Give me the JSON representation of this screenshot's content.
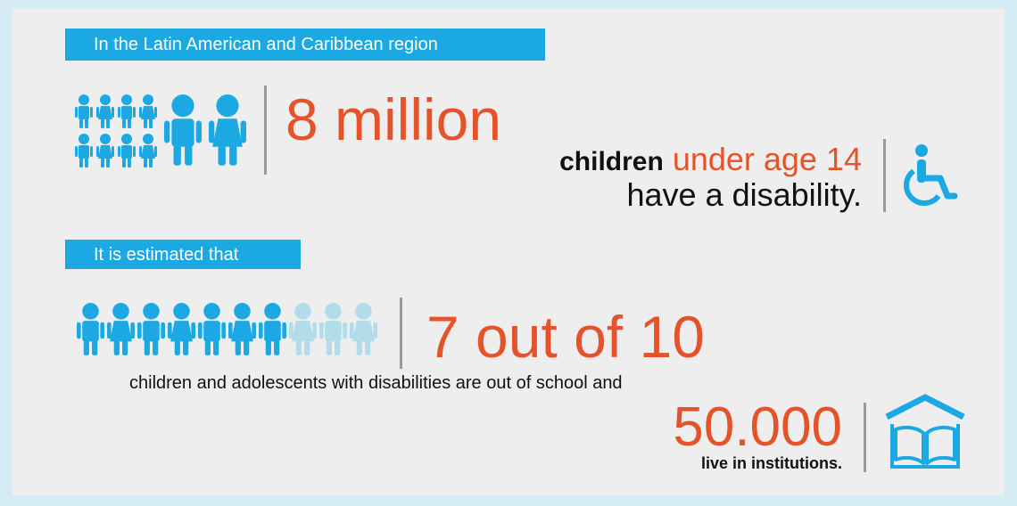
{
  "banners": {
    "region": "In the Latin American and Caribbean region",
    "estimated": "It is estimated that"
  },
  "stat1": {
    "number": "8 million",
    "children_bold": "children",
    "age_text": "under age 14",
    "disability_text": "have a disability."
  },
  "stat2": {
    "number": "7 out of 10",
    "description": "children and adolescents with disabilities are out of school and"
  },
  "stat3": {
    "number": "50.000",
    "description": "live in institutions."
  },
  "icons": {
    "children_group": "children-group-icon",
    "wheelchair": "wheelchair-icon",
    "school_book": "school-book-icon",
    "highlighted_children_count": 7,
    "total_children_count": 10
  },
  "colors": {
    "accent_blue": "#1ca8e2",
    "light_blue": "#b3dcea",
    "accent_orange": "#e5532a",
    "background": "#eeeeef",
    "border": "#d5ebf5"
  }
}
